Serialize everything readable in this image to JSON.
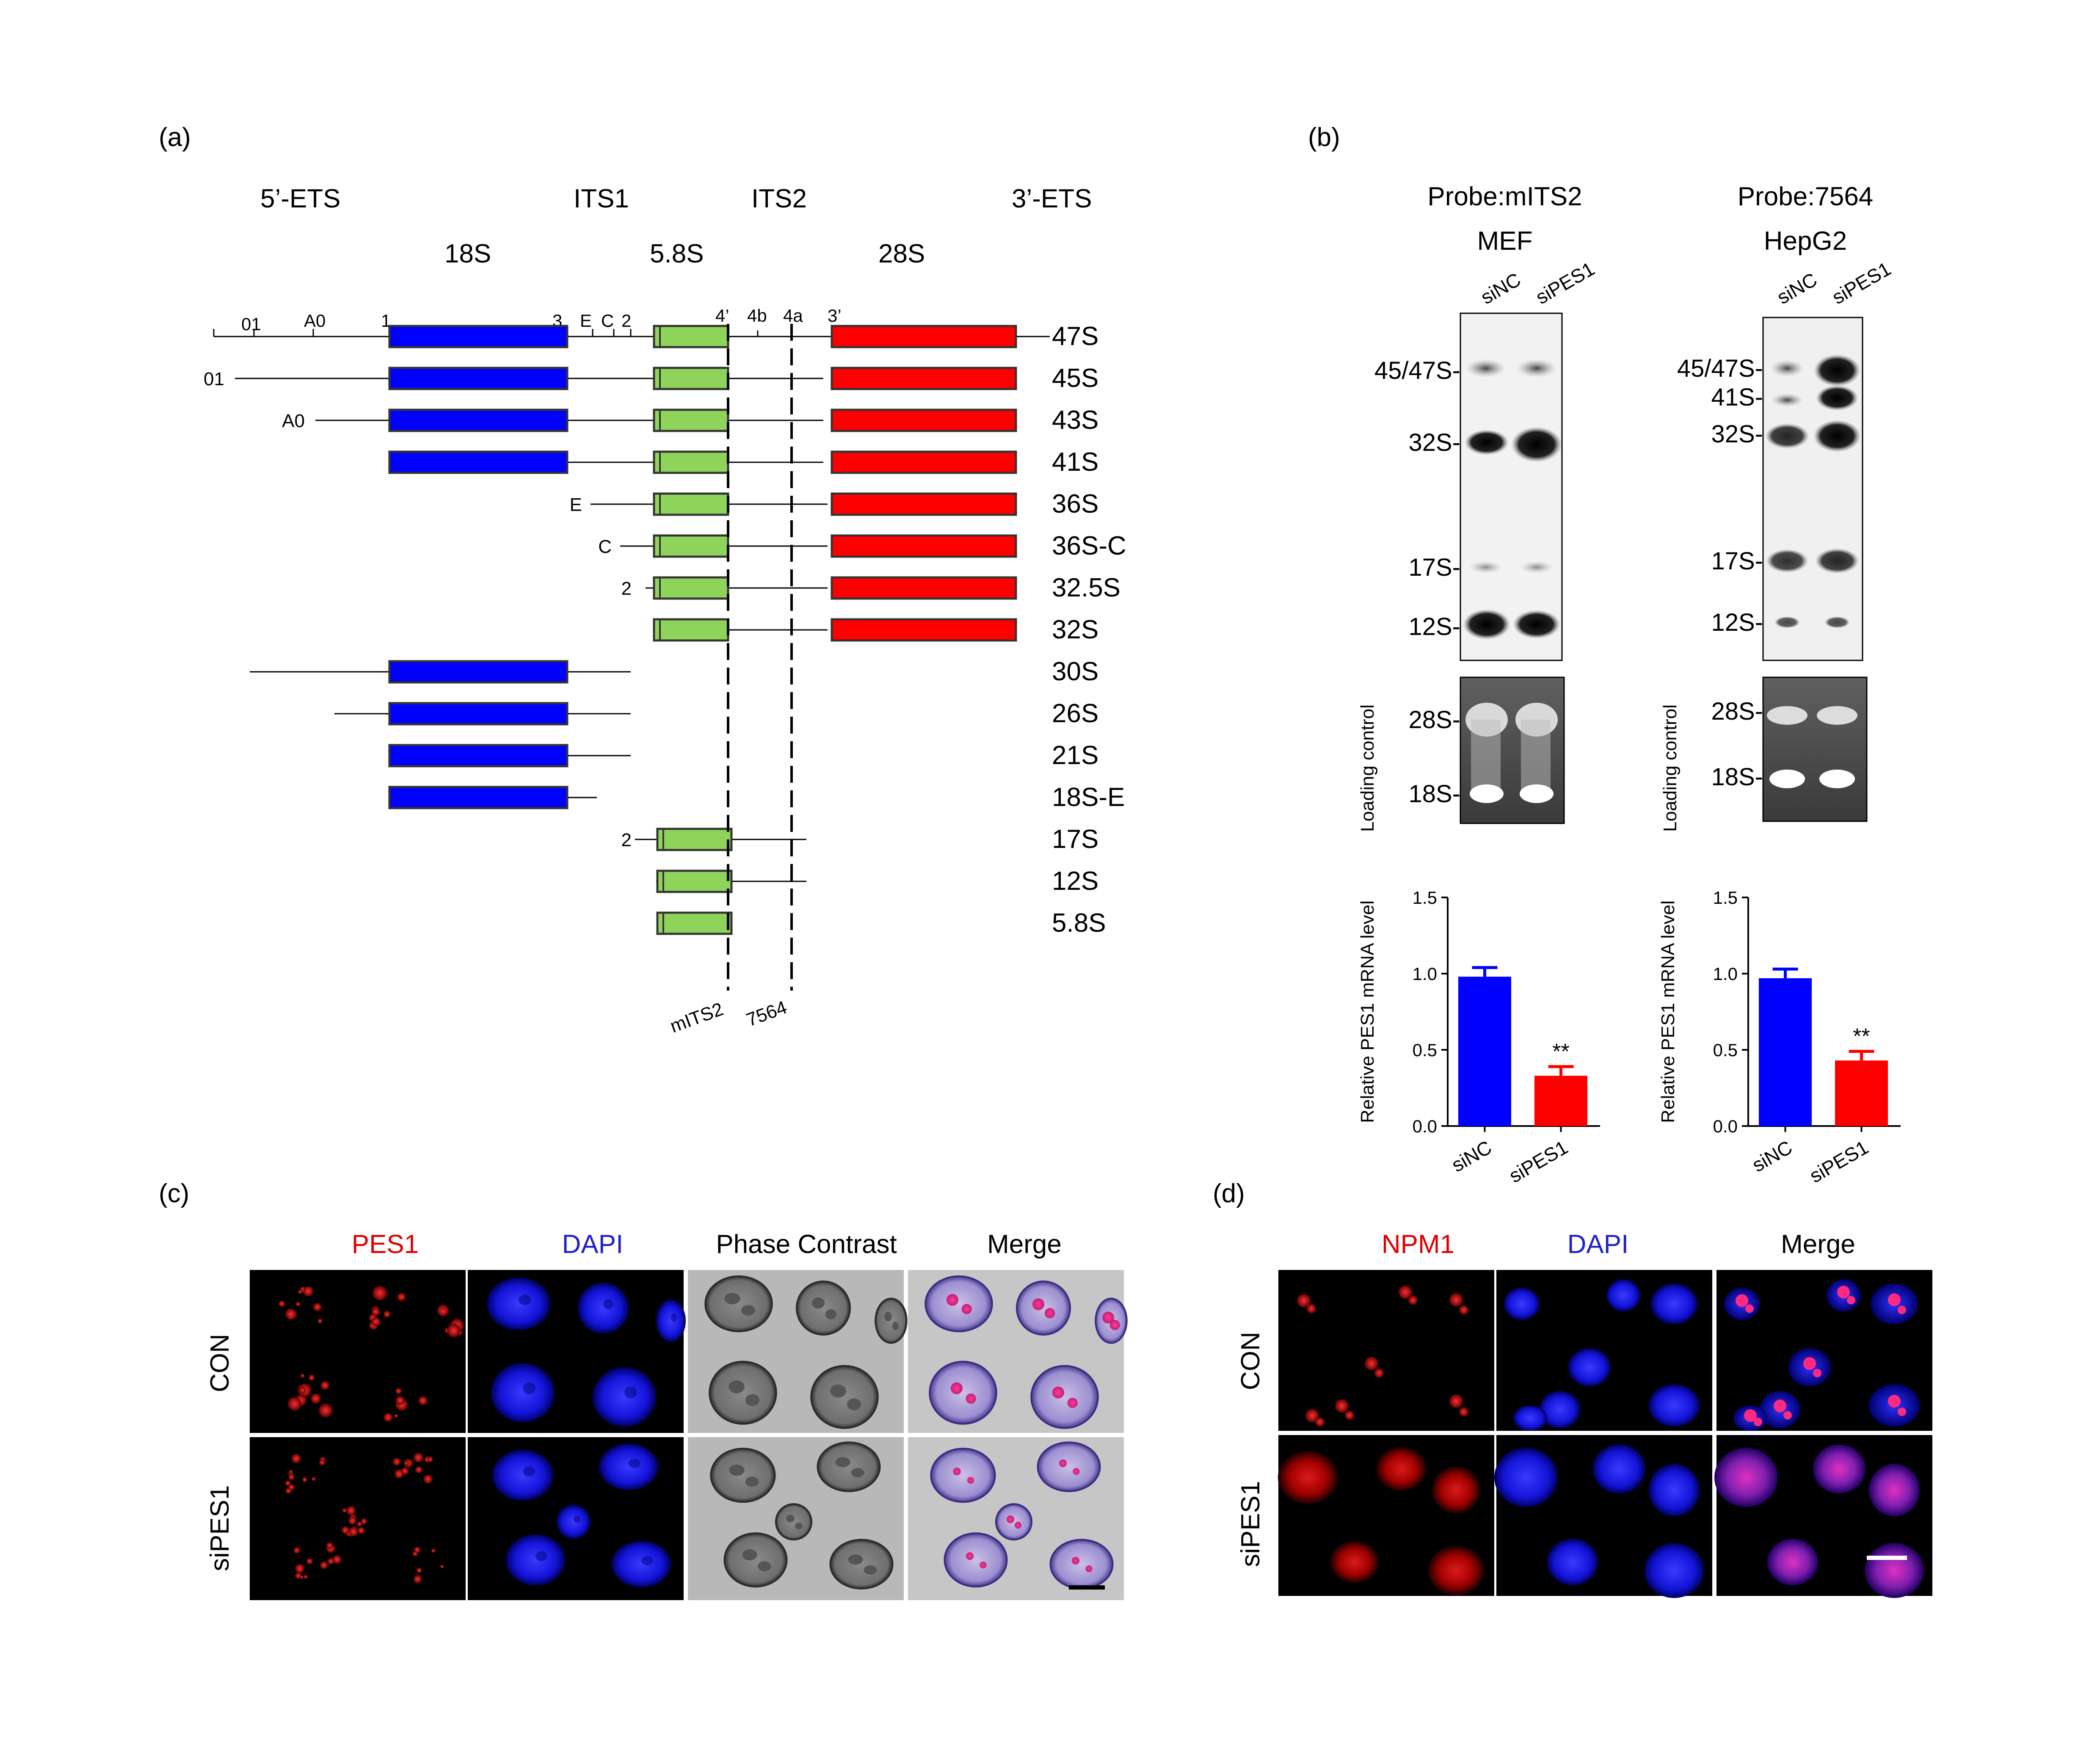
{
  "panel_a": {
    "label": "(a)",
    "regions": [
      "5’-ETS",
      "ITS1",
      "ITS2",
      "3’-ETS"
    ],
    "genes": [
      "18S",
      "5.8S",
      "28S"
    ],
    "sites": [
      "01",
      "A0",
      "1",
      "3",
      "E",
      "C",
      "2",
      "4’",
      "4b",
      "4a",
      "3’"
    ],
    "species": [
      "47S",
      "45S",
      "43S",
      "41S",
      "36S",
      "36S-C",
      "32.5S",
      "32S",
      "30S",
      "26S",
      "21S",
      "18S-E",
      "17S",
      "12S",
      "5.8S"
    ],
    "left_labels": {
      "45S": "01",
      "43S": "A0",
      "36S": "E",
      "36S-C": "C",
      "32.5S": "2",
      "17S": "2"
    },
    "probes": [
      "mITS2",
      "7564"
    ]
  },
  "panel_b": {
    "label": "(b)",
    "blots": [
      {
        "probe": "Probe:mITS2",
        "cell": "MEF",
        "lanes": [
          "siNC",
          "siPES1"
        ],
        "bands": [
          "45/47S-",
          "32S-",
          "17S-",
          "12S-"
        ],
        "loading": [
          "28S-",
          "18S-"
        ]
      },
      {
        "probe": "Probe:7564",
        "cell": "HepG2",
        "lanes": [
          "siNC",
          "siPES1"
        ],
        "bands": [
          "45/47S-",
          "41S-",
          "32S-",
          "17S-",
          "12S-"
        ],
        "loading": [
          "28S-",
          "18S-"
        ]
      }
    ],
    "loading_label": "Loading control"
  },
  "chart_data": [
    {
      "type": "bar",
      "categories": [
        "siNC",
        "siPES1"
      ],
      "values": [
        0.98,
        0.33
      ],
      "errors": [
        0.06,
        0.06
      ],
      "ylabel": "Relative PES1 mRNA level",
      "ylim": [
        0,
        1.5
      ],
      "yticks": [
        "0.0",
        "0.5",
        "1.0",
        "1.5"
      ],
      "significance": "**",
      "colors": [
        "#0000ff",
        "#ff0000"
      ]
    },
    {
      "type": "bar",
      "categories": [
        "siNC",
        "siPES1"
      ],
      "values": [
        0.97,
        0.43
      ],
      "errors": [
        0.06,
        0.06
      ],
      "ylabel": "Relative PES1 mRNA level",
      "ylim": [
        0,
        1.5
      ],
      "yticks": [
        "0.0",
        "0.5",
        "1.0",
        "1.5"
      ],
      "significance": "**",
      "colors": [
        "#0000ff",
        "#ff0000"
      ]
    }
  ],
  "panel_c": {
    "label": "(c)",
    "columns": [
      "PES1",
      "DAPI",
      "Phase Contrast",
      "Merge"
    ],
    "rows": [
      "CON",
      "siPES1"
    ]
  },
  "panel_d": {
    "label": "(d)",
    "columns": [
      "NPM1",
      "DAPI",
      "Merge"
    ],
    "rows": [
      "CON",
      "siPES1"
    ]
  },
  "colors": {
    "blue_box": "#0000ff",
    "green_box": "#8fd45a",
    "red_box": "#ff0000",
    "red_text": "#e00000",
    "blue_text": "#2020c8"
  }
}
